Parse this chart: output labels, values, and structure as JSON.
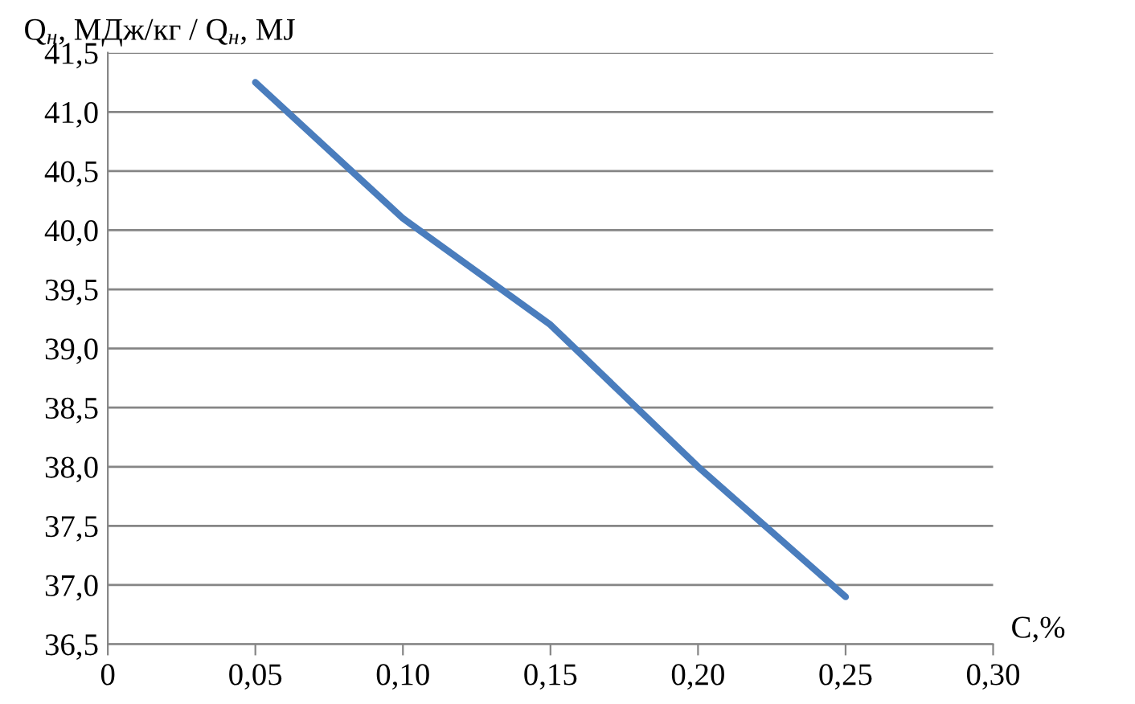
{
  "chart_data": {
    "type": "line",
    "ylabel": "Q$_{н}$, МДж/кг / Q$_{н}$, MJ",
    "xlabel": "C,%",
    "x": [
      0.05,
      0.1,
      0.15,
      0.2,
      0.25
    ],
    "series": [
      {
        "color": "#4a7dbd",
        "values": [
          41.25,
          40.1,
          39.2,
          38.0,
          36.9
        ]
      }
    ],
    "xlim": [
      0,
      0.3
    ],
    "xticks": [
      0,
      {
        "value": 0.05,
        "label": "0,05"
      },
      {
        "value": 0.1,
        "label": "0,10"
      },
      {
        "value": 0.15,
        "label": "0,15"
      },
      {
        "value": 0.2,
        "label": "0,20"
      },
      {
        "value": 0.25,
        "label": "0,25"
      },
      {
        "value": 0.3,
        "label": "0,30"
      }
    ],
    "ylim": [
      36.5,
      41.5
    ],
    "yticks": [
      {
        "value": 36.5,
        "label": "36,5"
      },
      {
        "value": 37.0,
        "label": "37,0"
      },
      {
        "value": 37.5,
        "label": "37,5"
      },
      {
        "value": 38.0,
        "label": "38,0"
      },
      {
        "value": 38.5,
        "label": "38,5"
      },
      {
        "value": 39.0,
        "label": "39,0"
      },
      {
        "value": 39.5,
        "label": "39,5"
      },
      {
        "value": 40.0,
        "label": "40,0"
      },
      {
        "value": 40.5,
        "label": "40,5"
      },
      {
        "value": 41.0,
        "label": "41,0"
      },
      {
        "value": 41.5,
        "label": "41,5"
      }
    ],
    "grid": "y",
    "marker": "none",
    "line_style": "solid"
  }
}
